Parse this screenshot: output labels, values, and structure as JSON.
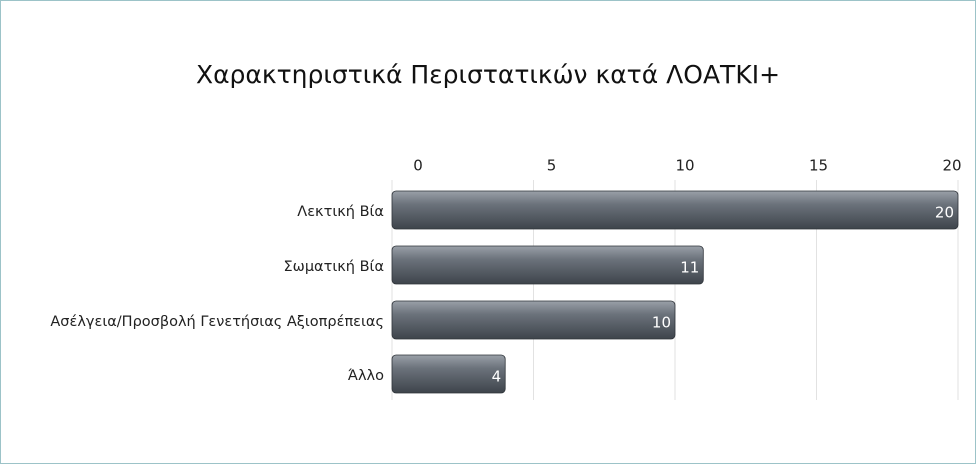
{
  "chart_data": {
    "type": "bar",
    "orientation": "horizontal",
    "title": "Χαρακτηριστικά Περιστατικών κατά ΛΟΑΤΚΙ+",
    "categories": [
      "Λεκτική Βία",
      "Σωματική Βία",
      "Ασέλγεια/Προσβολή Γενετήσιας Αξιοπρέπειας",
      "Άλλο"
    ],
    "values": [
      20,
      11,
      10,
      4
    ],
    "color": "#5f6670",
    "xlim": [
      0,
      20
    ],
    "xticks": [
      0,
      5,
      10,
      15,
      20
    ],
    "grid": true
  }
}
